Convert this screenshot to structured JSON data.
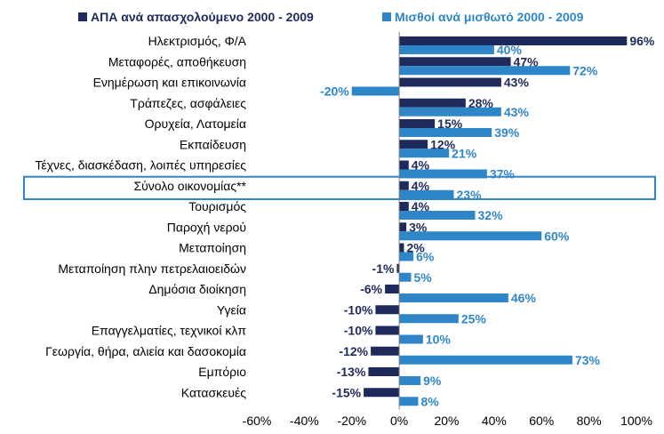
{
  "chart_data": {
    "type": "bar",
    "orientation": "horizontal",
    "categories": [
      "Ηλεκτρισμός, Φ/Α",
      "Μεταφορές, αποθήκευση",
      "Ενημέρωση και επικοινωνία",
      "Τράπεζες, ασφάλειες",
      "Ορυχεία, Λατομεία",
      "Εκπαίδευση",
      "Τέχνες, διασκέδαση, λοιπές υπηρεσίες",
      "Σύνολο οικονομίας**",
      "Τουρισμός",
      "Παροχή νερού",
      "Μεταποίηση",
      "Μεταποίηση πλην πετρελαιοειδών",
      "Δημόσια διοίκηση",
      "Υγεία",
      "Επαγγελματίες, τεχνικοί κλπ",
      "Γεωργία, θήρα, αλιεία και δασοκομία",
      "Εμπόριο",
      "Κατασκευές"
    ],
    "series": [
      {
        "name": "ΑΠΑ ανά απασχολούμενο 2000 - 2009",
        "color": "#1f2a5c",
        "values": [
          96,
          47,
          43,
          28,
          15,
          12,
          4,
          4,
          4,
          3,
          2,
          -1,
          -6,
          -10,
          -10,
          -12,
          -13,
          -15
        ],
        "labels": [
          "96%",
          "47%",
          "43%",
          "28%",
          "15%",
          "12%",
          "4%",
          "4%",
          "4%",
          "3%",
          "2%",
          "-1%",
          "-6%",
          "-10%",
          "-10%",
          "-12%",
          "-13%",
          "-15%"
        ]
      },
      {
        "name": "Μισθοί ανά μισθωτό 2000 - 2009",
        "color": "#2e86c8",
        "values": [
          40,
          72,
          -20,
          43,
          39,
          21,
          37,
          23,
          32,
          60,
          6,
          5,
          46,
          25,
          10,
          73,
          9,
          8
        ],
        "labels": [
          "40%",
          "72%",
          "-20%",
          "43%",
          "39%",
          "21%",
          "37%",
          "23%",
          "32%",
          "60%",
          "6%",
          "5%",
          "46%",
          "25%",
          "10%",
          "73%",
          "9%",
          "8%"
        ]
      }
    ],
    "xlim": [
      -60,
      100
    ],
    "xticks": [
      -60,
      -40,
      -20,
      0,
      20,
      40,
      60,
      80,
      100
    ],
    "xtick_labels": [
      "-60%",
      "-40%",
      "-20%",
      "0%",
      "20%",
      "40%",
      "60%",
      "80%",
      "100%"
    ],
    "highlighted_category": "Σύνολο οικονομίας**",
    "highlight_color": "#2e86c8",
    "legend_position": "top",
    "grid": false,
    "title": "",
    "xlabel": "",
    "ylabel": ""
  }
}
